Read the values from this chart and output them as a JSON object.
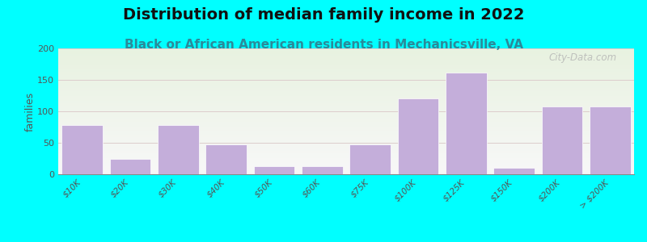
{
  "title": "Distribution of median family income in 2022",
  "subtitle": "Black or African American residents in Mechanicsville, VA",
  "categories": [
    "$10K",
    "$20K",
    "$30K",
    "$40K",
    "$50K",
    "$60K",
    "$75K",
    "$100K",
    "$125K",
    "$150K",
    "$200K",
    "> $200K"
  ],
  "values": [
    78,
    25,
    78,
    48,
    13,
    13,
    48,
    120,
    162,
    10,
    108,
    108
  ],
  "bar_color": "#C4AEDA",
  "background_outer": "#00FFFF",
  "background_plot_top": "#e8f2e0",
  "background_plot_bottom": "#f8f8f8",
  "ylabel": "families",
  "ylim": [
    0,
    200
  ],
  "yticks": [
    0,
    50,
    100,
    150,
    200
  ],
  "grid_color": "#ddcccc",
  "title_fontsize": 14,
  "subtitle_fontsize": 11,
  "watermark": "City-Data.com",
  "bar_width": 0.85
}
